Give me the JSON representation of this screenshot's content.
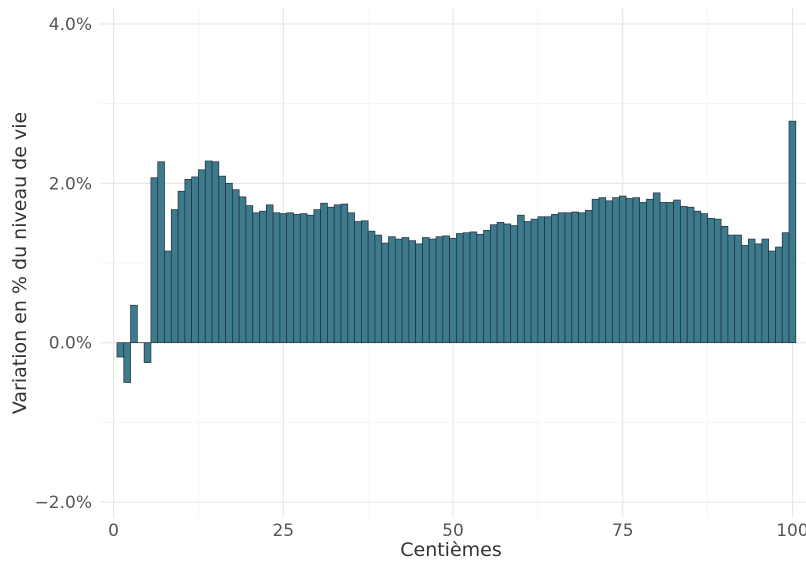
{
  "chart_data": {
    "type": "bar",
    "xlabel": "Centièmes",
    "ylabel": "Variation en % du niveau de vie",
    "xlim": [
      -2,
      102
    ],
    "ylim": [
      -2.2,
      4.2
    ],
    "x_ticks": [
      0,
      25,
      50,
      75,
      100
    ],
    "x_tick_labels": [
      "0",
      "25",
      "50",
      "75",
      "100"
    ],
    "y_ticks": [
      -2.0,
      0.0,
      2.0,
      4.0
    ],
    "y_tick_labels": [
      "−2.0%",
      "0.0%",
      "2.0%",
      "4.0%"
    ],
    "grid": true,
    "bar_color": "#3d7a8e",
    "x": [
      1,
      2,
      3,
      4,
      5,
      6,
      7,
      8,
      9,
      10,
      11,
      12,
      13,
      14,
      15,
      16,
      17,
      18,
      19,
      20,
      21,
      22,
      23,
      24,
      25,
      26,
      27,
      28,
      29,
      30,
      31,
      32,
      33,
      34,
      35,
      36,
      37,
      38,
      39,
      40,
      41,
      42,
      43,
      44,
      45,
      46,
      47,
      48,
      49,
      50,
      51,
      52,
      53,
      54,
      55,
      56,
      57,
      58,
      59,
      60,
      61,
      62,
      63,
      64,
      65,
      66,
      67,
      68,
      69,
      70,
      71,
      72,
      73,
      74,
      75,
      76,
      77,
      78,
      79,
      80,
      81,
      82,
      83,
      84,
      85,
      86,
      87,
      88,
      89,
      90,
      91,
      92,
      93,
      94,
      95,
      96,
      97,
      98,
      99,
      100
    ],
    "values": [
      -0.18,
      -0.5,
      0.47,
      0.0,
      -0.25,
      2.07,
      2.27,
      1.15,
      1.67,
      1.9,
      2.05,
      2.08,
      2.17,
      2.28,
      2.27,
      2.09,
      2.0,
      1.92,
      1.83,
      1.72,
      1.63,
      1.65,
      1.73,
      1.63,
      1.62,
      1.63,
      1.61,
      1.62,
      1.6,
      1.67,
      1.75,
      1.7,
      1.73,
      1.74,
      1.63,
      1.52,
      1.53,
      1.4,
      1.35,
      1.25,
      1.33,
      1.3,
      1.32,
      1.28,
      1.24,
      1.32,
      1.3,
      1.33,
      1.34,
      1.31,
      1.37,
      1.38,
      1.39,
      1.36,
      1.41,
      1.48,
      1.51,
      1.49,
      1.47,
      1.6,
      1.52,
      1.55,
      1.58,
      1.58,
      1.61,
      1.63,
      1.63,
      1.64,
      1.63,
      1.66,
      1.8,
      1.82,
      1.78,
      1.82,
      1.84,
      1.81,
      1.82,
      1.76,
      1.8,
      1.88,
      1.76,
      1.76,
      1.79,
      1.71,
      1.7,
      1.65,
      1.62,
      1.56,
      1.55,
      1.46,
      1.35,
      1.35,
      1.22,
      1.3,
      1.24,
      1.3,
      1.15,
      1.2,
      1.38,
      2.78
    ]
  }
}
